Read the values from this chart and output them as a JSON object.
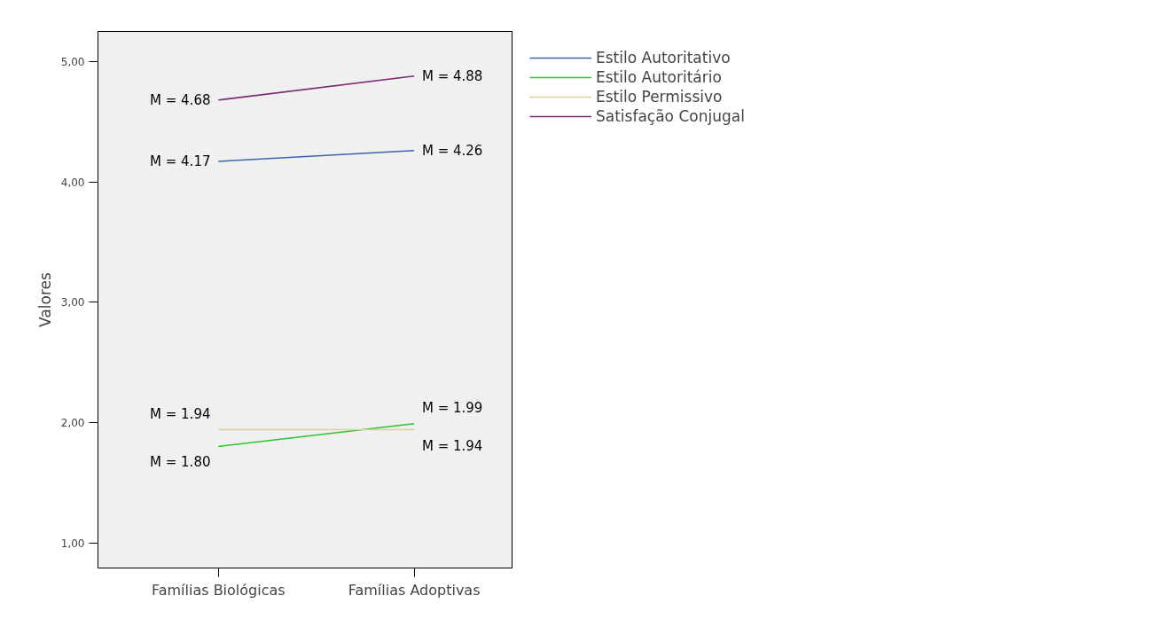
{
  "chart_data": {
    "type": "line",
    "ylabel": "Valores",
    "categories": [
      "Famílias Biológicas",
      "Famílias Adoptivas"
    ],
    "series": [
      {
        "name": "Estilo Autoritativo",
        "color": "#4060b0",
        "values": [
          4.17,
          4.26
        ],
        "value_labels": [
          "M = 4.17",
          "M = 4.26"
        ]
      },
      {
        "name": "Estilo Autoritário",
        "color": "#30c030",
        "values": [
          1.8,
          1.99
        ],
        "value_labels": [
          "M = 1.80",
          "M = 1.99"
        ]
      },
      {
        "name": "Estilo Permissivo",
        "color": "#d8d0a0",
        "values": [
          1.94,
          1.94
        ],
        "value_labels": [
          "M = 1.94",
          "M = 1.94"
        ]
      },
      {
        "name": "Satisfação Conjugal",
        "color": "#7a2a6e",
        "values": [
          4.68,
          4.88
        ],
        "value_labels": [
          "M = 4.68",
          "M = 4.88"
        ]
      }
    ],
    "ylim": [
      0.79,
      5.25
    ],
    "yticks": [
      {
        "value": 1,
        "label": "1,00"
      },
      {
        "value": 2,
        "label": "2,00"
      },
      {
        "value": 3,
        "label": "3,00"
      },
      {
        "value": 4,
        "label": "4,00"
      },
      {
        "value": 5,
        "label": "5,00"
      }
    ],
    "grid": false,
    "legend": "right",
    "marker": "none",
    "line_style": "solid"
  }
}
